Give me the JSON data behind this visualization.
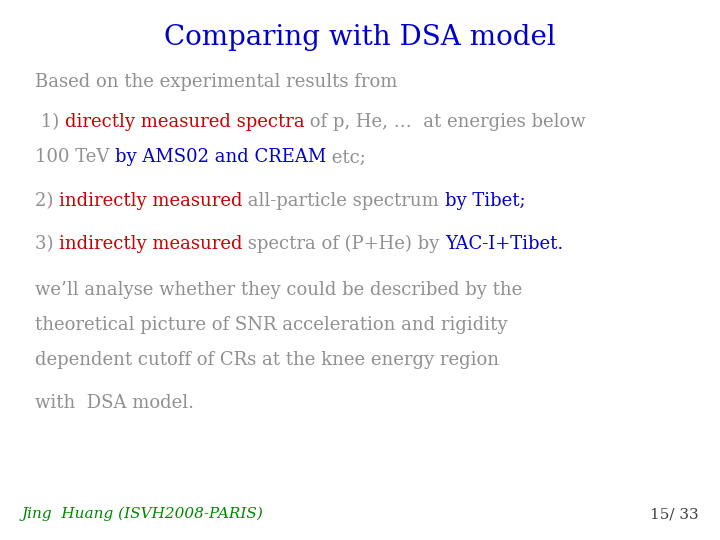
{
  "title": "Comparing with DSA model",
  "title_color": "#0000CC",
  "title_fontsize": 20,
  "background_color": "#FFFFFF",
  "footer_left": "Jing  Huang (ISVH2008-PARIS)",
  "footer_right": "15/ 33",
  "footer_color": "#008800",
  "footer_right_color": "#404040",
  "footer_fontsize": 11,
  "body_fontsize": 13,
  "gray": "#909090",
  "red": "#CC0000",
  "blue": "#0000CC"
}
